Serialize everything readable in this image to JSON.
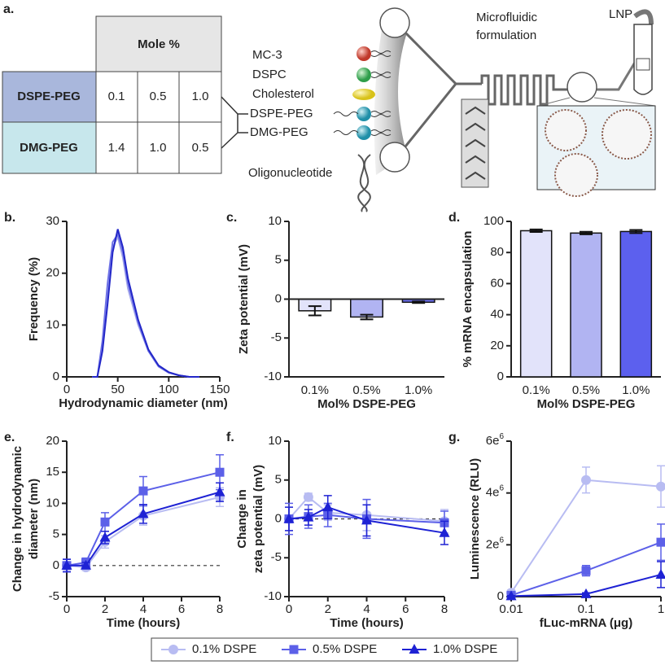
{
  "figure_a": {
    "panel_label": "a.",
    "table": {
      "header": "Mole %",
      "rows": [
        [
          "DSPE-PEG",
          "0.1",
          "0.5",
          "1.0"
        ],
        [
          "DMG-PEG",
          "1.4",
          "1.0",
          "0.5"
        ]
      ]
    },
    "components": [
      "MC-3",
      "DSPC",
      "Cholesterol",
      "DSPE-PEG",
      "DMG-PEG",
      "Oligonucleotide"
    ],
    "process": [
      "Microfluidic",
      "formulation"
    ],
    "product": "LNP"
  },
  "chart_data": [
    {
      "type": "line",
      "panel_label": "b.",
      "xlabel": "Hydrodynamic diameter (nm)",
      "ylabel": "Frequency (%)",
      "x": [
        25,
        30,
        35,
        40,
        45,
        50,
        55,
        60,
        70,
        80,
        90,
        100,
        110,
        120,
        130
      ],
      "series": [
        {
          "color": "#a9acec",
          "values": [
            0,
            0,
            6,
            16,
            25,
            27,
            23,
            17,
            10,
            5,
            2,
            0.8,
            0.3,
            0,
            0
          ]
        },
        {
          "color": "#6e72e6",
          "values": [
            0,
            0,
            7,
            18,
            26,
            27.5,
            24,
            18,
            10.5,
            5,
            2,
            0.8,
            0.3,
            0,
            0
          ]
        },
        {
          "color": "#2327c8",
          "values": [
            0,
            0,
            5,
            14,
            24,
            28.5,
            25,
            19,
            11,
            5.3,
            2.2,
            0.9,
            0.3,
            0,
            0
          ]
        }
      ],
      "xlim": [
        0,
        150
      ],
      "xticks": [
        0,
        50,
        100,
        150
      ],
      "ylim": [
        0,
        30
      ],
      "yticks": [
        0,
        10,
        20,
        30
      ]
    },
    {
      "type": "bar",
      "panel_label": "c.",
      "xlabel": "Mol% DSPE-PEG",
      "ylabel": "Zeta potential (mV)",
      "categories": [
        "0.1%",
        "0.5%",
        "1.0%"
      ],
      "values": [
        -1.5,
        -2.3,
        -0.4
      ],
      "errors": [
        0.6,
        0.3,
        0.1
      ],
      "colors": [
        "#e2e3fa",
        "#b1b4f2",
        "#6b6ef0"
      ],
      "ylim": [
        -10,
        10
      ],
      "yticks": [
        -10,
        -5,
        0,
        5,
        10
      ]
    },
    {
      "type": "bar",
      "panel_label": "d.",
      "xlabel": "Mol% DSPE-PEG",
      "ylabel": "% mRNA encapsulation",
      "categories": [
        "0.1%",
        "0.5%",
        "1.0%"
      ],
      "values": [
        94,
        92.5,
        93.5
      ],
      "errors": [
        0.8,
        0.8,
        1
      ],
      "colors": [
        "#e2e3fa",
        "#b1b4f2",
        "#5c60ee"
      ],
      "ylim": [
        0,
        100
      ],
      "yticks": [
        0,
        20,
        40,
        60,
        80,
        100
      ]
    },
    {
      "type": "line",
      "panel_label": "e.",
      "xlabel": "Time (hours)",
      "ylabel": [
        "Change in hydrodynamic",
        "diameter (nm)"
      ],
      "dashed_zero": true,
      "x": [
        0,
        1,
        2,
        4,
        8
      ],
      "series": [
        {
          "name": "0.1% DSPE",
          "color": "#b8bcf2",
          "marker": "circle",
          "values": [
            0,
            -0.3,
            3.8,
            8,
            11
          ],
          "errors": [
            1,
            0.5,
            1,
            1.5,
            1.5
          ]
        },
        {
          "name": "0.5% DSPE",
          "color": "#5c60e8",
          "marker": "square",
          "values": [
            0,
            0.5,
            7,
            12,
            15
          ],
          "errors": [
            1,
            0.7,
            1.5,
            2.3,
            2.8
          ]
        },
        {
          "name": "1.0% DSPE",
          "color": "#1e22d4",
          "marker": "triangle",
          "values": [
            0,
            0,
            4.5,
            8.3,
            11.8
          ],
          "errors": [
            1,
            0.5,
            1,
            1.5,
            1.5
          ]
        }
      ],
      "legend": "bottom",
      "xlim": [
        0,
        8
      ],
      "xticks": [
        0,
        2,
        4,
        6,
        8
      ],
      "ylim": [
        -5,
        20
      ],
      "yticks": [
        -5,
        0,
        5,
        10,
        15,
        20
      ]
    },
    {
      "type": "line",
      "panel_label": "f.",
      "xlabel": "Time (hours)",
      "ylabel": [
        "Change in",
        "zeta potential (mV)"
      ],
      "dashed_zero": true,
      "x": [
        0,
        1,
        2,
        4,
        8
      ],
      "series": [
        {
          "name": "0.1% DSPE",
          "color": "#b8bcf2",
          "marker": "circle",
          "values": [
            0,
            2.8,
            0.8,
            0.5,
            -0.3
          ],
          "errors": [
            1.5,
            0.5,
            1,
            2,
            1.5
          ]
        },
        {
          "name": "0.5% DSPE",
          "color": "#5c60e8",
          "marker": "square",
          "values": [
            0,
            0.3,
            0.5,
            0,
            -0.5
          ],
          "errors": [
            2,
            1.5,
            1.5,
            2.5,
            1.5
          ]
        },
        {
          "name": "1.0% DSPE",
          "color": "#1e22d4",
          "marker": "triangle",
          "values": [
            0,
            0.2,
            1.5,
            -0.2,
            -1.8
          ],
          "errors": [
            1.5,
            1,
            1.5,
            2,
            1.5
          ]
        }
      ],
      "xlim": [
        0,
        8
      ],
      "xticks": [
        0,
        2,
        4,
        6,
        8
      ],
      "ylim": [
        -10,
        10
      ],
      "yticks": [
        -10,
        -5,
        0,
        5,
        10
      ]
    },
    {
      "type": "line",
      "panel_label": "g.",
      "xlabel": "fLuc-mRNA (μg)",
      "ylabel": "Luminescence (RLU)",
      "xscale": "log",
      "x": [
        0.01,
        0.1,
        1
      ],
      "series": [
        {
          "name": "0.1% DSPE",
          "color": "#b8bcf2",
          "marker": "circle",
          "values": [
            150000,
            4500000,
            4250000
          ],
          "errors": [
            100000,
            500000,
            800000
          ]
        },
        {
          "name": "0.5% DSPE",
          "color": "#5c60e8",
          "marker": "square",
          "values": [
            50000,
            1000000,
            2100000
          ],
          "errors": [
            50000,
            200000,
            700000
          ]
        },
        {
          "name": "1.0% DSPE",
          "color": "#1e22d4",
          "marker": "triangle",
          "values": [
            20000,
            100000,
            850000
          ],
          "errors": [
            20000,
            50000,
            500000
          ]
        }
      ],
      "xlim": [
        0.01,
        1
      ],
      "xticks": [
        0.01,
        0.1,
        1
      ],
      "ylim": [
        0,
        6000000
      ],
      "yticks": [
        0,
        {
          "value": 2000000,
          "label": "2e6"
        },
        {
          "value": 4000000,
          "label": "4e6"
        },
        {
          "value": 6000000,
          "label": "6e6"
        }
      ]
    }
  ]
}
